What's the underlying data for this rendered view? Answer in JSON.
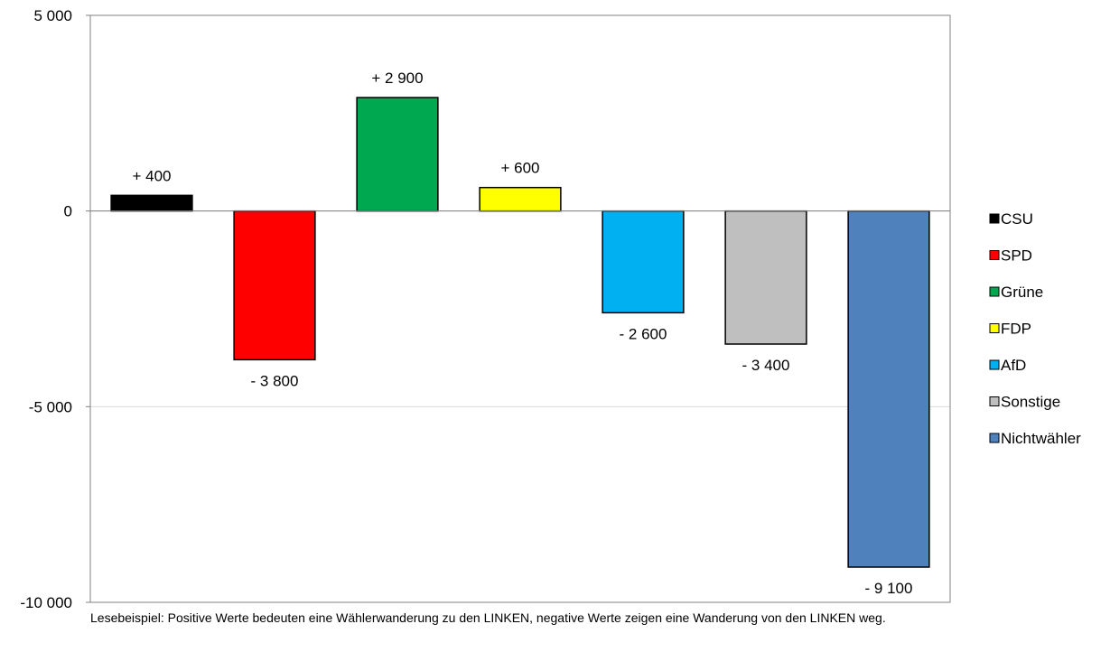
{
  "chart_data": {
    "type": "bar",
    "categories": [
      "CSU",
      "SPD",
      "Grüne",
      "FDP",
      "AfD",
      "Sonstige",
      "Nichtwähler"
    ],
    "values": [
      400,
      -3800,
      2900,
      600,
      -2600,
      -3400,
      -9100
    ],
    "data_labels": [
      "+ 400",
      "- 3 800",
      "+ 2 900",
      "+ 600",
      "- 2 600",
      "- 3 400",
      "- 9 100"
    ],
    "colors": [
      "#000000",
      "#ff0000",
      "#00a84f",
      "#ffff00",
      "#00b0f0",
      "#bfbfbf",
      "#4f81bd"
    ],
    "ylim": [
      -10000,
      5000
    ],
    "yticks": [
      5000,
      0,
      -5000,
      -10000
    ],
    "ytick_labels": [
      "5 000",
      "0",
      "-5 000",
      "-10 000"
    ],
    "grid": true,
    "legend_position": "right",
    "title": "",
    "xlabel": "",
    "ylabel": ""
  },
  "note": "Lesebeispiel: Positive Werte bedeuten eine Wählerwanderung zu den LINKEN, negative Werte zeigen eine Wanderung von den LINKEN weg."
}
